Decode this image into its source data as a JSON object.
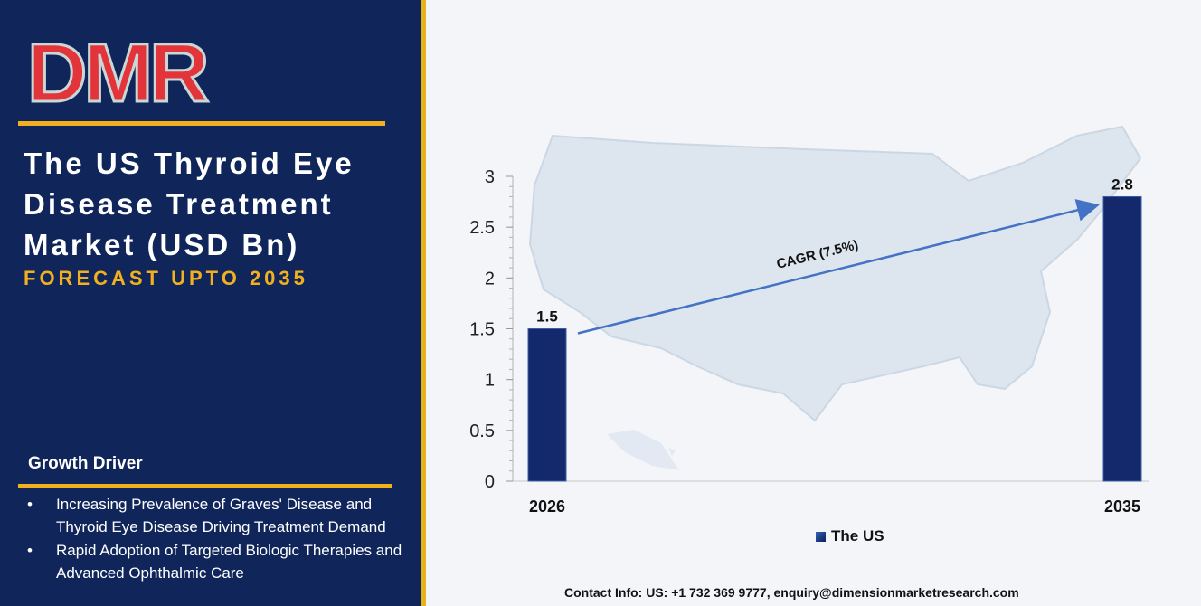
{
  "brand": {
    "logo_text": "DMR"
  },
  "panel": {
    "title_lines": [
      "The US Thyroid Eye",
      "Disease Treatment",
      "Market (USD Bn)"
    ],
    "subtitle": "FORECAST UPTO 2035",
    "growth_driver_heading": "Growth Driver",
    "growth_drivers": [
      "Increasing Prevalence of Graves' Disease and Thyroid Eye Disease Driving Treatment Demand",
      "Rapid Adoption of Targeted Biologic Therapies and Advanced Ophthalmic Care"
    ]
  },
  "colors": {
    "panel_bg": "#10265b",
    "accent": "#f2b01e",
    "bar": "#14296b",
    "arrow": "#4472c4",
    "logo_red": "#e3333b",
    "logo_grey": "#c9d8d5"
  },
  "chart_data": {
    "type": "bar",
    "categories": [
      "2026",
      "2035"
    ],
    "series": [
      {
        "name": "The US",
        "values": [
          1.5,
          2.8
        ]
      }
    ],
    "data_labels": [
      "1.5",
      "2.8"
    ],
    "ylim": [
      0,
      3
    ],
    "yticks": [
      "0",
      "0.5",
      "1",
      "1.5",
      "2",
      "2.5",
      "3"
    ],
    "annotation": "CAGR (7.5%)",
    "legend": "bottom",
    "grid": false
  },
  "footer": {
    "contact": "Contact Info: US: +1 732 369 9777, enquiry@dimensionmarketresearch.com"
  }
}
